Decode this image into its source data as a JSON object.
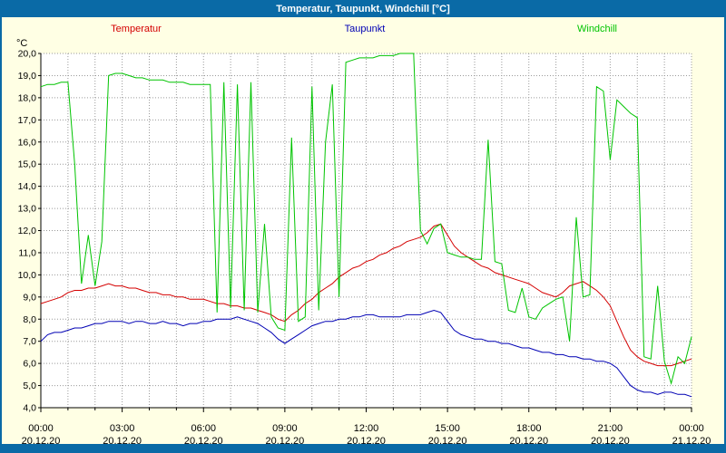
{
  "window": {
    "title": "Temperatur, Taupunkt, Windchill [°C]"
  },
  "frame": {
    "color": "#0a6aa6",
    "background": "#ffffe4",
    "plot_background": "#ffffff",
    "grid_color": "#9a9a9a",
    "axis_color": "#000000"
  },
  "axes": {
    "y_unit": "°C"
  },
  "chart_data": {
    "type": "line",
    "title": "Temperatur, Taupunkt, Windchill [°C]",
    "xlabel": "",
    "ylabel": "°C",
    "grid": "dotted",
    "legend_position": "top",
    "x_range": [
      0,
      24
    ],
    "x_step": 0.25,
    "x_grid_step": 1,
    "x_tick_hours": [
      0,
      3,
      6,
      9,
      12,
      15,
      18,
      21,
      24
    ],
    "x_tick_labels": [
      "00:00",
      "03:00",
      "06:00",
      "09:00",
      "12:00",
      "15:00",
      "18:00",
      "21:00",
      "00:00"
    ],
    "x_tick_dates": [
      "20.12.20",
      "20.12.20",
      "20.12.20",
      "20.12.20",
      "20.12.20",
      "20.12.20",
      "20.12.20",
      "20.12.20",
      "21.12.20"
    ],
    "ylim": [
      4,
      20
    ],
    "y_tick_step": 1,
    "y_tick_labels": [
      "4,0",
      "5,0",
      "6,0",
      "7,0",
      "8,0",
      "9,0",
      "10,0",
      "11,0",
      "12,0",
      "13,0",
      "14,0",
      "15,0",
      "16,0",
      "17,0",
      "18,0",
      "19,0",
      "20,0"
    ],
    "series": [
      {
        "name": "Temperatur",
        "color": "#d40000",
        "values": [
          8.7,
          8.8,
          8.9,
          9.0,
          9.2,
          9.3,
          9.3,
          9.4,
          9.4,
          9.5,
          9.6,
          9.5,
          9.5,
          9.4,
          9.4,
          9.3,
          9.2,
          9.2,
          9.1,
          9.1,
          9.0,
          9.0,
          8.9,
          8.9,
          8.9,
          8.8,
          8.7,
          8.7,
          8.6,
          8.6,
          8.5,
          8.5,
          8.4,
          8.3,
          8.2,
          8.0,
          7.9,
          8.2,
          8.4,
          8.7,
          8.9,
          9.2,
          9.4,
          9.6,
          9.9,
          10.1,
          10.3,
          10.4,
          10.6,
          10.7,
          10.9,
          11.0,
          11.2,
          11.3,
          11.5,
          11.6,
          11.7,
          11.9,
          12.2,
          12.3,
          11.8,
          11.3,
          11.0,
          10.8,
          10.6,
          10.4,
          10.3,
          10.1,
          10.0,
          9.9,
          9.8,
          9.7,
          9.6,
          9.4,
          9.2,
          9.1,
          9.0,
          9.2,
          9.5,
          9.6,
          9.7,
          9.5,
          9.3,
          9.0,
          8.6,
          7.9,
          7.2,
          6.6,
          6.3,
          6.1,
          6.0,
          5.9,
          5.9,
          5.9,
          6.0,
          6.1,
          6.2
        ]
      },
      {
        "name": "Taupunkt",
        "color": "#0000b4",
        "values": [
          7.0,
          7.3,
          7.4,
          7.4,
          7.5,
          7.6,
          7.6,
          7.7,
          7.8,
          7.8,
          7.9,
          7.9,
          7.9,
          7.8,
          7.9,
          7.9,
          7.8,
          7.8,
          7.9,
          7.8,
          7.8,
          7.7,
          7.8,
          7.8,
          7.9,
          7.9,
          8.0,
          8.0,
          8.0,
          8.1,
          8.0,
          7.9,
          7.8,
          7.6,
          7.4,
          7.1,
          6.9,
          7.1,
          7.3,
          7.5,
          7.7,
          7.8,
          7.9,
          7.9,
          8.0,
          8.0,
          8.1,
          8.1,
          8.2,
          8.2,
          8.1,
          8.1,
          8.1,
          8.1,
          8.2,
          8.2,
          8.2,
          8.3,
          8.4,
          8.3,
          7.9,
          7.5,
          7.3,
          7.2,
          7.1,
          7.1,
          7.0,
          7.0,
          6.9,
          6.9,
          6.8,
          6.7,
          6.7,
          6.6,
          6.5,
          6.5,
          6.4,
          6.4,
          6.3,
          6.3,
          6.2,
          6.2,
          6.1,
          6.1,
          6.0,
          5.8,
          5.4,
          5.0,
          4.8,
          4.7,
          4.7,
          4.6,
          4.7,
          4.7,
          4.6,
          4.6,
          4.5
        ]
      },
      {
        "name": "Windchill",
        "color": "#00c400",
        "values": [
          18.5,
          18.6,
          18.6,
          18.7,
          18.7,
          15.0,
          9.6,
          11.8,
          9.5,
          11.5,
          19.0,
          19.1,
          19.1,
          19.0,
          18.9,
          18.9,
          18.8,
          18.8,
          18.8,
          18.7,
          18.7,
          18.7,
          18.6,
          18.6,
          18.6,
          18.6,
          8.3,
          18.7,
          8.5,
          18.6,
          8.4,
          18.7,
          8.3,
          12.3,
          8.1,
          7.6,
          7.5,
          16.2,
          7.9,
          8.1,
          18.5,
          8.4,
          16.0,
          18.6,
          9.0,
          19.6,
          19.7,
          19.8,
          19.8,
          19.8,
          19.9,
          19.9,
          19.9,
          20.0,
          20.0,
          20.0,
          12.0,
          11.4,
          12.1,
          12.3,
          11.0,
          10.9,
          10.8,
          10.8,
          10.7,
          10.7,
          16.1,
          10.6,
          10.5,
          8.4,
          8.3,
          9.4,
          8.1,
          8.0,
          8.5,
          8.7,
          8.9,
          9.0,
          7.0,
          12.6,
          9.0,
          9.1,
          18.5,
          18.3,
          15.2,
          17.9,
          17.6,
          17.3,
          17.1,
          6.3,
          6.2,
          9.5,
          6.1,
          5.1,
          6.3,
          6.0,
          7.2
        ]
      }
    ]
  }
}
